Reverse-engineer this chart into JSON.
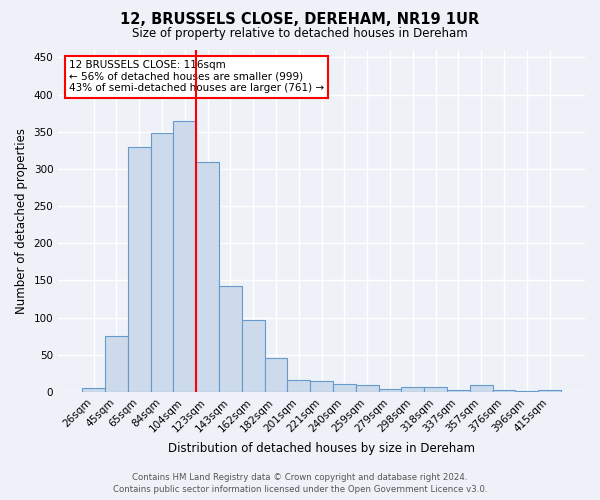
{
  "title": "12, BRUSSELS CLOSE, DEREHAM, NR19 1UR",
  "subtitle": "Size of property relative to detached houses in Dereham",
  "xlabel": "Distribution of detached houses by size in Dereham",
  "ylabel": "Number of detached properties",
  "categories": [
    "26sqm",
    "45sqm",
    "65sqm",
    "84sqm",
    "104sqm",
    "123sqm",
    "143sqm",
    "162sqm",
    "182sqm",
    "201sqm",
    "221sqm",
    "240sqm",
    "259sqm",
    "279sqm",
    "298sqm",
    "318sqm",
    "337sqm",
    "357sqm",
    "376sqm",
    "396sqm",
    "415sqm"
  ],
  "values": [
    5,
    75,
    330,
    348,
    365,
    309,
    143,
    97,
    46,
    16,
    15,
    11,
    9,
    4,
    6,
    6,
    3,
    9,
    2,
    1,
    3
  ],
  "bar_color": "#ccdaeb",
  "bar_edge_color": "#6699cc",
  "vline_color": "red",
  "annotation_text": "12 BRUSSELS CLOSE: 116sqm\n← 56% of detached houses are smaller (999)\n43% of semi-detached houses are larger (761) →",
  "annotation_box_color": "white",
  "annotation_box_edge": "red",
  "footer_line1": "Contains HM Land Registry data © Crown copyright and database right 2024.",
  "footer_line2": "Contains public sector information licensed under the Open Government Licence v3.0.",
  "bg_color": "#eef2f8",
  "grid_color": "white",
  "yticks": [
    0,
    50,
    100,
    150,
    200,
    250,
    300,
    350,
    400,
    450
  ],
  "ylim": [
    0,
    460
  ]
}
